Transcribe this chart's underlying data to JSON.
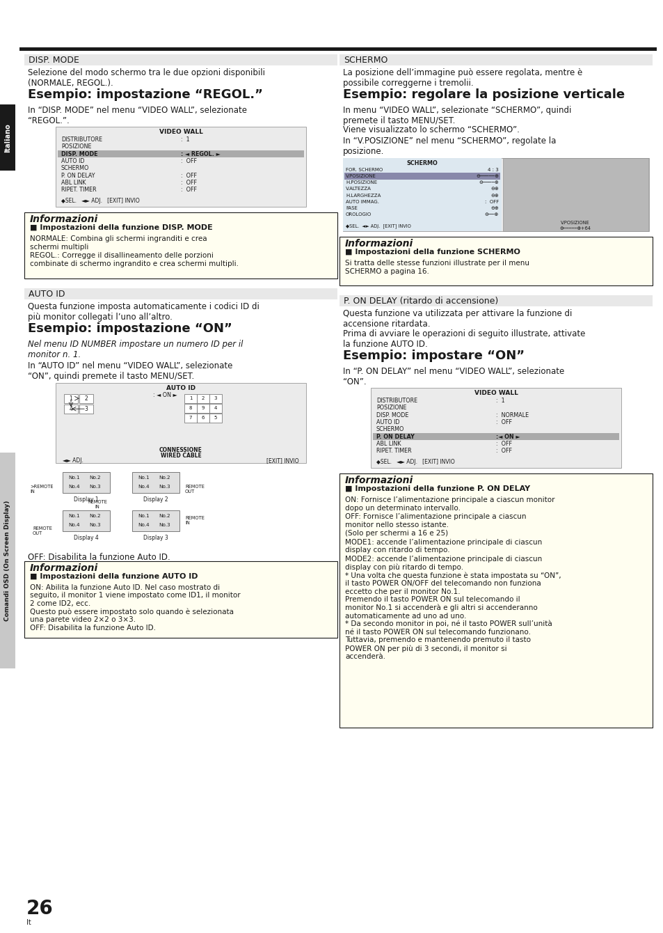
{
  "bg": "#ffffff",
  "dark": "#1a1a1a",
  "light_gray": "#e8e8e8",
  "med_gray": "#c8c8c8",
  "info_bg": "#fffef0",
  "screen_bg": "#ebebeb",
  "highlight_bg": "#c8c8c8",
  "page_num": "26",
  "page_lang": "It",
  "tab_top_text": "Italiano",
  "tab_bot_text": "Comandi OSD (On Screen Display)"
}
